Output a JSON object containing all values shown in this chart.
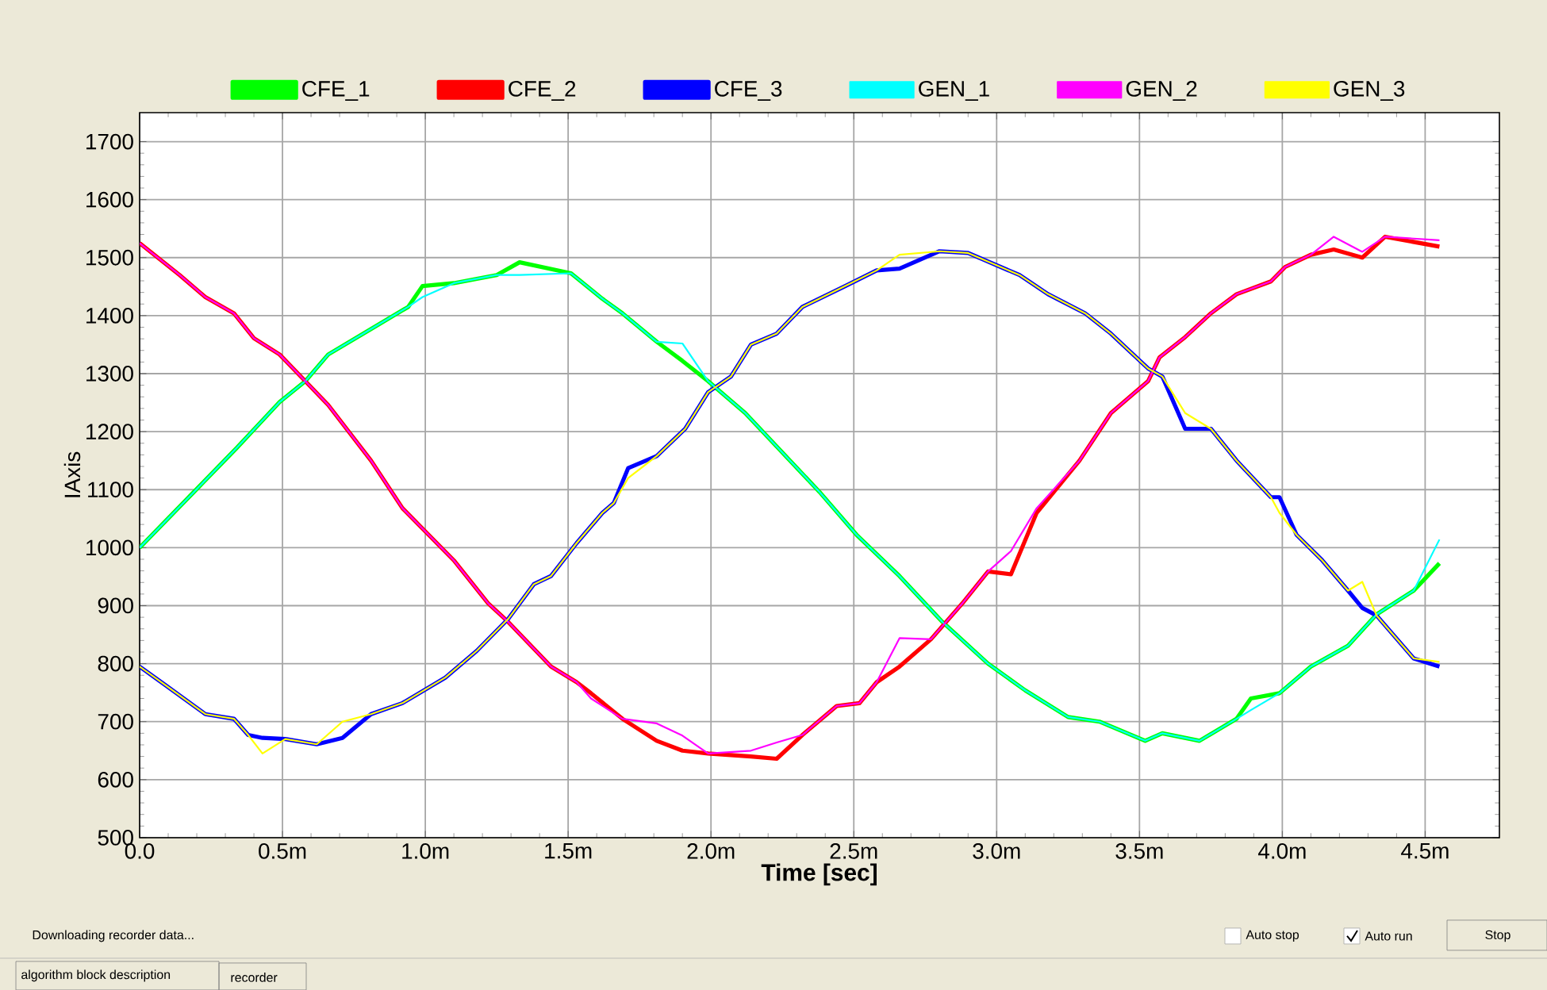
{
  "chart_data": {
    "type": "line",
    "xlabel": "Time [sec]",
    "ylabel": "IAxis",
    "xlim": [
      0,
      4.76
    ],
    "ylim": [
      500,
      1750
    ],
    "xticks": [
      {
        "value": 0,
        "label": "0.0"
      },
      {
        "value": 0.5,
        "label": "0.5m"
      },
      {
        "value": 1.0,
        "label": "1.0m"
      },
      {
        "value": 1.5,
        "label": "1.5m"
      },
      {
        "value": 2.0,
        "label": "2.0m"
      },
      {
        "value": 2.5,
        "label": "2.5m"
      },
      {
        "value": 3.0,
        "label": "3.0m"
      },
      {
        "value": 3.5,
        "label": "3.5m"
      },
      {
        "value": 4.0,
        "label": "4.0m"
      },
      {
        "value": 4.5,
        "label": "4.5m"
      }
    ],
    "yticks": [
      500,
      600,
      700,
      800,
      900,
      1000,
      1100,
      1200,
      1300,
      1400,
      1500,
      1600,
      1700
    ],
    "grid": true,
    "legend": "top",
    "line_style": "solid",
    "marker": "none",
    "series": [
      {
        "name": "CFE_1",
        "color": "#00ff00",
        "x": [
          0,
          0.19,
          0.34,
          0.49,
          0.58,
          0.66,
          0.81,
          0.94,
          0.99,
          1.1,
          1.25,
          1.33,
          1.51,
          1.62,
          1.69,
          1.81,
          1.9,
          1.99,
          2.12,
          2.25,
          2.38,
          2.51,
          2.66,
          2.81,
          2.97,
          3.1,
          3.25,
          3.36,
          3.52,
          3.58,
          3.71,
          3.84,
          3.89,
          3.99,
          4.1,
          4.23,
          4.33,
          4.46,
          4.55
        ],
        "values": [
          1000,
          1096,
          1172,
          1251,
          1287,
          1333,
          1377,
          1415,
          1451,
          1456,
          1470,
          1492,
          1473,
          1429,
          1404,
          1355,
          1322,
          1287,
          1232,
          1164,
          1096,
          1022,
          951,
          872,
          800,
          754,
          708,
          700,
          667,
          680,
          667,
          705,
          740,
          749,
          795,
          831,
          885,
          926,
          973
        ]
      },
      {
        "name": "CFE_2",
        "color": "#ff0000",
        "x": [
          0,
          0.14,
          0.23,
          0.33,
          0.4,
          0.49,
          0.58,
          0.66,
          0.81,
          0.92,
          0.99,
          1.1,
          1.22,
          1.29,
          1.44,
          1.53,
          1.58,
          1.69,
          1.81,
          1.9,
          1.99,
          2.14,
          2.23,
          2.32,
          2.44,
          2.52,
          2.58,
          2.66,
          2.77,
          2.88,
          2.97,
          3.05,
          3.14,
          3.29,
          3.4,
          3.53,
          3.57,
          3.66,
          3.75,
          3.84,
          3.96,
          4.01,
          4.1,
          4.18,
          4.28,
          4.36,
          4.55
        ],
        "values": [
          1525,
          1470,
          1432,
          1404,
          1361,
          1333,
          1287,
          1246,
          1150,
          1068,
          1033,
          978,
          904,
          872,
          795,
          768,
          749,
          705,
          667,
          650,
          645,
          640,
          636,
          677,
          727,
          732,
          768,
          795,
          842,
          904,
          959,
          954,
          1060,
          1150,
          1232,
          1287,
          1328,
          1363,
          1404,
          1437,
          1459,
          1484,
          1505,
          1514,
          1500,
          1536,
          1519
        ]
      },
      {
        "name": "CFE_3",
        "color": "#0000ff",
        "x": [
          0,
          0.09,
          0.23,
          0.33,
          0.38,
          0.43,
          0.51,
          0.62,
          0.71,
          0.81,
          0.92,
          1.07,
          1.18,
          1.29,
          1.38,
          1.44,
          1.53,
          1.62,
          1.66,
          1.71,
          1.81,
          1.91,
          1.99,
          2.07,
          2.14,
          2.23,
          2.32,
          2.47,
          2.58,
          2.66,
          2.8,
          2.9,
          3.08,
          3.18,
          3.31,
          3.4,
          3.53,
          3.58,
          3.66,
          3.75,
          3.84,
          3.96,
          3.99,
          4.05,
          4.14,
          4.23,
          4.28,
          4.33,
          4.46,
          4.55
        ],
        "values": [
          795,
          763,
          713,
          705,
          677,
          672,
          670,
          661,
          672,
          713,
          732,
          776,
          822,
          877,
          937,
          951,
          1008,
          1060,
          1077,
          1137,
          1158,
          1205,
          1268,
          1295,
          1350,
          1369,
          1415,
          1451,
          1478,
          1481,
          1511,
          1508,
          1470,
          1437,
          1404,
          1369,
          1309,
          1295,
          1205,
          1205,
          1150,
          1087,
          1087,
          1022,
          978,
          926,
          896,
          883,
          809,
          795
        ]
      },
      {
        "name": "GEN_1",
        "color": "#00ffff",
        "x": [
          0,
          0.19,
          0.34,
          0.49,
          0.58,
          0.66,
          0.81,
          0.94,
          0.99,
          1.1,
          1.25,
          1.33,
          1.51,
          1.62,
          1.69,
          1.81,
          1.9,
          1.99,
          2.12,
          2.25,
          2.38,
          2.51,
          2.66,
          2.81,
          2.97,
          3.1,
          3.25,
          3.36,
          3.52,
          3.58,
          3.71,
          3.84,
          3.89,
          3.99,
          4.1,
          4.23,
          4.33,
          4.46,
          4.55
        ],
        "values": [
          1000,
          1096,
          1172,
          1251,
          1287,
          1333,
          1377,
          1415,
          1432,
          1456,
          1470,
          1470,
          1473,
          1429,
          1404,
          1355,
          1352,
          1287,
          1232,
          1164,
          1096,
          1022,
          951,
          872,
          800,
          754,
          708,
          700,
          667,
          680,
          667,
          705,
          720,
          749,
          795,
          831,
          885,
          926,
          1014
        ]
      },
      {
        "name": "GEN_2",
        "color": "#ff00ff",
        "x": [
          0,
          0.14,
          0.23,
          0.33,
          0.4,
          0.49,
          0.58,
          0.66,
          0.81,
          0.92,
          0.99,
          1.1,
          1.22,
          1.29,
          1.44,
          1.53,
          1.58,
          1.69,
          1.81,
          1.9,
          1.99,
          2.14,
          2.23,
          2.32,
          2.44,
          2.52,
          2.58,
          2.66,
          2.77,
          2.88,
          2.97,
          3.05,
          3.14,
          3.29,
          3.4,
          3.53,
          3.57,
          3.66,
          3.75,
          3.84,
          3.96,
          4.01,
          4.1,
          4.18,
          4.28,
          4.36,
          4.55
        ],
        "values": [
          1525,
          1470,
          1432,
          1404,
          1361,
          1333,
          1287,
          1246,
          1150,
          1068,
          1033,
          978,
          904,
          872,
          795,
          768,
          740,
          705,
          697,
          676,
          645,
          650,
          664,
          677,
          727,
          732,
          768,
          844,
          842,
          904,
          959,
          994,
          1068,
          1150,
          1232,
          1287,
          1328,
          1363,
          1404,
          1437,
          1459,
          1484,
          1505,
          1536,
          1510,
          1536,
          1530
        ]
      },
      {
        "name": "GEN_3",
        "color": "#ffff00",
        "x": [
          0,
          0.09,
          0.23,
          0.33,
          0.38,
          0.43,
          0.51,
          0.62,
          0.71,
          0.81,
          0.92,
          1.07,
          1.18,
          1.29,
          1.38,
          1.44,
          1.53,
          1.62,
          1.66,
          1.71,
          1.81,
          1.91,
          1.99,
          2.07,
          2.14,
          2.23,
          2.32,
          2.47,
          2.58,
          2.66,
          2.8,
          2.9,
          3.08,
          3.18,
          3.31,
          3.4,
          3.53,
          3.58,
          3.66,
          3.75,
          3.84,
          3.96,
          3.99,
          4.05,
          4.14,
          4.23,
          4.28,
          4.33,
          4.46,
          4.55
        ],
        "values": [
          795,
          763,
          713,
          705,
          677,
          645,
          670,
          661,
          700,
          713,
          732,
          776,
          822,
          877,
          937,
          951,
          1008,
          1060,
          1077,
          1120,
          1158,
          1205,
          1268,
          1295,
          1350,
          1369,
          1415,
          1451,
          1478,
          1505,
          1511,
          1508,
          1470,
          1437,
          1404,
          1369,
          1309,
          1295,
          1232,
          1205,
          1150,
          1087,
          1060,
          1022,
          978,
          926,
          941,
          883,
          809,
          803
        ]
      }
    ],
    "annotations": [
      "Downloading recorder data...",
      "Auto stop",
      "Auto run",
      "Stop",
      "algorithm block description",
      "recorder"
    ]
  }
}
